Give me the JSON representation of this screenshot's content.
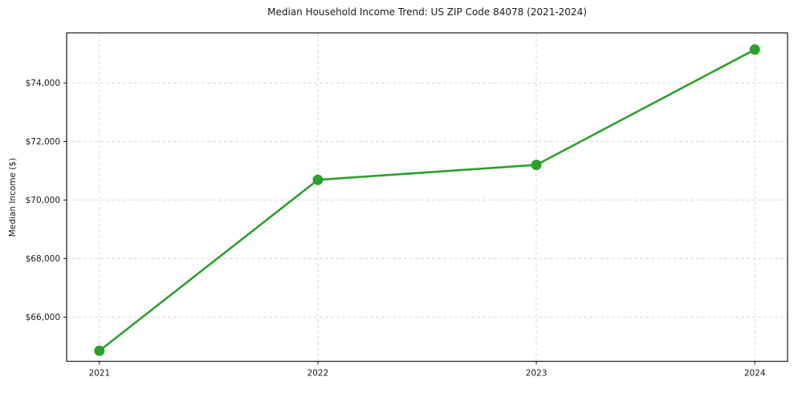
{
  "chart_data": {
    "type": "line",
    "title": "Median Household Income Trend: US ZIP Code 84078 (2021-2024)",
    "xlabel": "",
    "ylabel": "Median Income ($)",
    "x": [
      2021,
      2022,
      2023,
      2024
    ],
    "values": [
      64850,
      70690,
      71200,
      75140
    ],
    "xticks": [
      {
        "value": 2021,
        "label": "2021"
      },
      {
        "value": 2022,
        "label": "2022"
      },
      {
        "value": 2023,
        "label": "2023"
      },
      {
        "value": 2024,
        "label": "2024"
      }
    ],
    "yticks": [
      {
        "value": 66000,
        "label": "$66,000"
      },
      {
        "value": 68000,
        "label": "$68,000"
      },
      {
        "value": 70000,
        "label": "$70,000"
      },
      {
        "value": 72000,
        "label": "$72,000"
      },
      {
        "value": 74000,
        "label": "$74,000"
      }
    ],
    "xlim": [
      2020.85,
      2024.15
    ],
    "ylim": [
      64490,
      75710
    ],
    "grid": true,
    "grid_style": "dashed",
    "legend": "none",
    "marker": "circle",
    "line_color": "#2ca02c",
    "background": "#ffffff"
  }
}
